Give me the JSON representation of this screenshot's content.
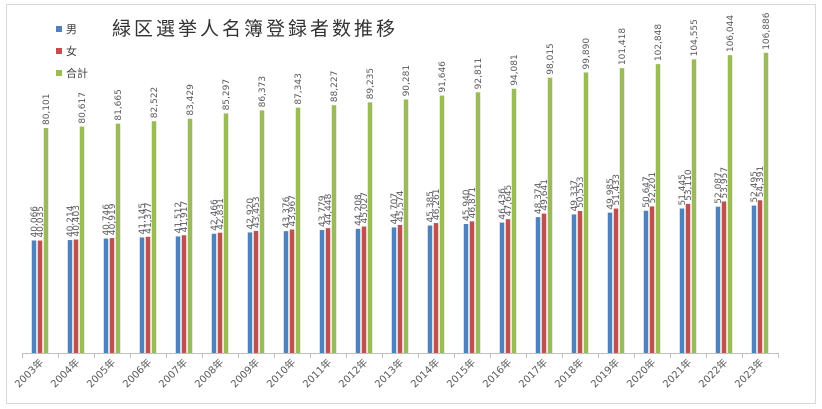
{
  "chart_data": {
    "type": "bar",
    "title": "緑区選挙人名簿登録者数推移",
    "xlabel": "",
    "ylabel": "",
    "ylim": [
      0,
      115000
    ],
    "grid": false,
    "legend_position": "top-left",
    "categories": [
      "2003年",
      "2004年",
      "2005年",
      "2006年",
      "2007年",
      "2008年",
      "2009年",
      "2010年",
      "2011年",
      "2012年",
      "2013年",
      "2014年",
      "2015年",
      "2016年",
      "2017年",
      "2018年",
      "2019年",
      "2020年",
      "2021年",
      "2022年",
      "2023年"
    ],
    "series": [
      {
        "name": "男",
        "color": "#4f81bd",
        "values": [
          40066,
          40214,
          40746,
          41145,
          41512,
          42466,
          42920,
          43376,
          43779,
          44208,
          44707,
          45385,
          45940,
          46436,
          48374,
          49337,
          49985,
          50647,
          51445,
          52087,
          52495
        ],
        "labels": [
          "40,066",
          "40,214",
          "40,746",
          "41,145",
          "41,512",
          "42,466",
          "42,920",
          "43,376",
          "43,779",
          "44,208",
          "44,707",
          "45,385",
          "45,940",
          "46,436",
          "48,374",
          "49,337",
          "49,985",
          "50,647",
          "51,445",
          "52,087",
          "52,495"
        ]
      },
      {
        "name": "女",
        "color": "#c0504d",
        "values": [
          40035,
          40403,
          40919,
          41377,
          41917,
          42831,
          43453,
          43967,
          44448,
          45027,
          45574,
          46261,
          46871,
          47645,
          49641,
          50553,
          51433,
          52201,
          53110,
          53957,
          54391
        ],
        "labels": [
          "40,035",
          "40,403",
          "40,919",
          "41,377",
          "41,917",
          "42,831",
          "43,453",
          "43,967",
          "44,448",
          "45,027",
          "45,574",
          "46,261",
          "46,871",
          "47,645",
          "49,641",
          "50,553",
          "51,433",
          "52,201",
          "53,110",
          "53,957",
          "54,391"
        ]
      },
      {
        "name": "合計",
        "color": "#9bbb59",
        "values": [
          80101,
          80617,
          81665,
          82522,
          83429,
          85297,
          86373,
          87343,
          88227,
          89235,
          90281,
          91646,
          92811,
          94081,
          98015,
          99890,
          101418,
          102848,
          104555,
          106044,
          106886
        ],
        "labels": [
          "80,101",
          "80,617",
          "81,665",
          "82,522",
          "83,429",
          "85,297",
          "86,373",
          "87,343",
          "88,227",
          "89,235",
          "90,281",
          "91,646",
          "92,811",
          "94,081",
          "98,015",
          "99,890",
          "101,418",
          "102,848",
          "104,555",
          "106,044",
          "106,886"
        ]
      }
    ]
  }
}
